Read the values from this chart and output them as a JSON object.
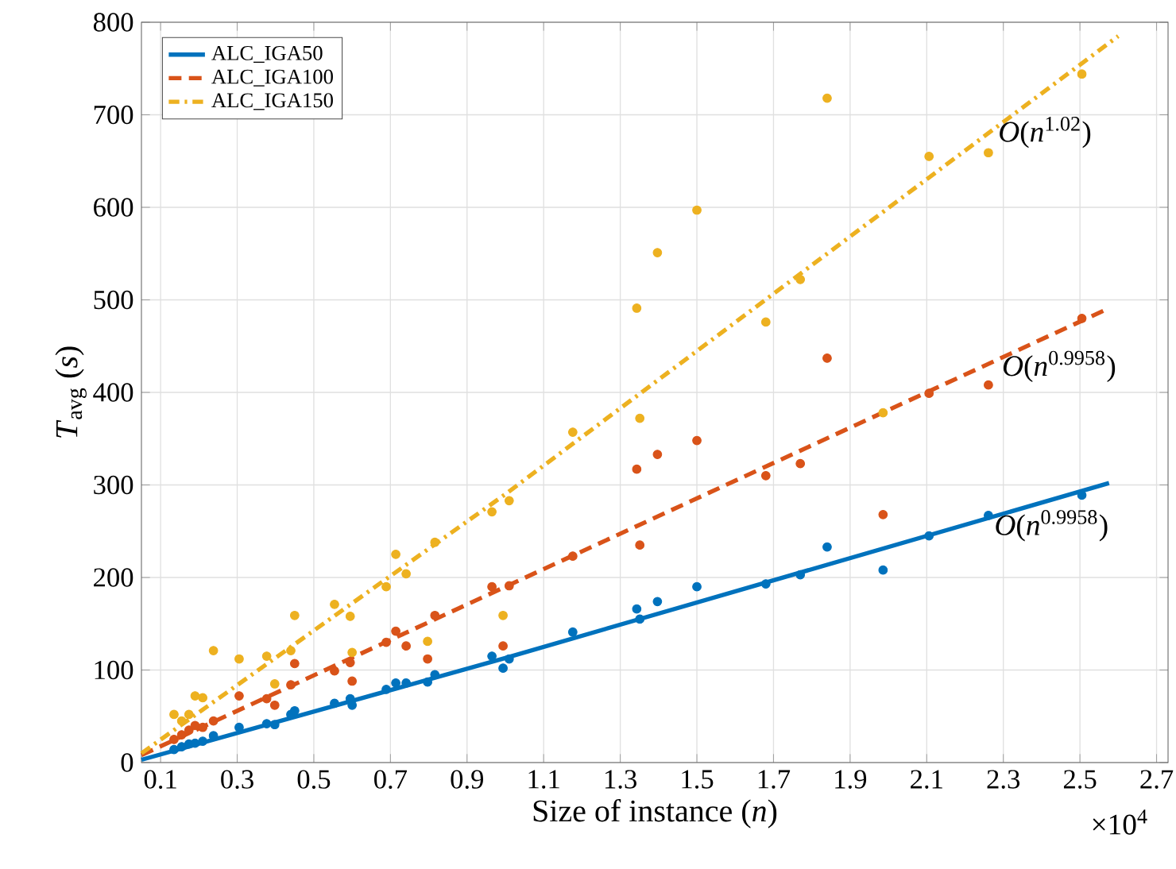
{
  "chart_data": {
    "type": "scatter",
    "xlabel": "Size of instance (*n*)",
    "ylabel": "*T*$_{avg}$ (*s*)",
    "xlim": [
      0.05,
      2.73
    ],
    "ylim": [
      0,
      800
    ],
    "xticks": [
      0.1,
      0.3,
      0.5,
      0.7,
      0.9,
      1.1,
      1.3,
      1.5,
      1.7,
      1.9,
      2.1,
      2.3,
      2.5,
      2.7
    ],
    "yticks": [
      0,
      100,
      200,
      300,
      400,
      500,
      600,
      700,
      800
    ],
    "grid": true,
    "legend": "top left",
    "series": [
      {
        "name": "ALC_IGA50",
        "type": "line",
        "color": "#0072bd",
        "line_style": "solid",
        "x": [
          0.05,
          1.0,
          2.576
        ],
        "values": [
          3,
          113,
          302
        ]
      },
      {
        "name": "ALC_IGA100",
        "type": "line",
        "color": "#d95319",
        "line_style": "dashed",
        "x": [
          0.05,
          1.0,
          2.576
        ],
        "values": [
          8,
          190,
          491
        ]
      },
      {
        "name": "ALC_IGA150",
        "type": "line",
        "color": "#edb120",
        "line_style": "dashdot",
        "x": [
          0.05,
          1.0,
          2.6
        ],
        "values": [
          10,
          290,
          785
        ]
      },
      {
        "color": "#0072bd",
        "marker": "circle",
        "x": [
          0.135,
          0.155,
          0.174,
          0.19,
          0.21,
          0.238,
          0.305,
          0.377,
          0.398,
          0.44,
          0.45,
          0.554,
          0.595,
          0.6,
          0.689,
          0.714,
          0.741,
          0.797,
          0.816,
          0.965,
          0.994,
          1.01,
          1.176,
          1.343,
          1.351,
          1.397,
          1.5,
          1.68,
          1.77,
          1.84,
          1.986,
          2.106,
          2.261,
          2.505
        ],
        "values": [
          14,
          17,
          20,
          21,
          23,
          29,
          38,
          42,
          41,
          52,
          56,
          64,
          69,
          62,
          79,
          86,
          86,
          87,
          95,
          115,
          102,
          112,
          141,
          166,
          155,
          174,
          190,
          193,
          203,
          233,
          208,
          245,
          267,
          289
        ]
      },
      {
        "color": "#d95319",
        "marker": "circle",
        "x": [
          0.135,
          0.155,
          0.174,
          0.19,
          0.21,
          0.238,
          0.305,
          0.377,
          0.398,
          0.44,
          0.45,
          0.554,
          0.595,
          0.6,
          0.689,
          0.714,
          0.741,
          0.797,
          0.816,
          0.965,
          0.994,
          1.01,
          1.176,
          1.343,
          1.351,
          1.397,
          1.5,
          1.68,
          1.77,
          1.84,
          1.986,
          2.106,
          2.261,
          2.505
        ],
        "values": [
          25,
          30,
          35,
          40,
          38,
          45,
          72,
          69,
          62,
          84,
          107,
          99,
          108,
          88,
          130,
          142,
          126,
          112,
          159,
          190,
          126,
          191,
          223,
          317,
          235,
          333,
          348,
          310,
          323,
          437,
          268,
          399,
          408,
          480
        ]
      },
      {
        "color": "#edb120",
        "marker": "circle",
        "x": [
          0.135,
          0.155,
          0.174,
          0.19,
          0.21,
          0.238,
          0.305,
          0.377,
          0.398,
          0.44,
          0.45,
          0.554,
          0.595,
          0.6,
          0.689,
          0.714,
          0.741,
          0.797,
          0.816,
          0.965,
          0.994,
          1.01,
          1.176,
          1.343,
          1.351,
          1.397,
          1.5,
          1.68,
          1.77,
          1.84,
          1.986,
          2.106,
          2.261,
          2.505
        ],
        "values": [
          52,
          45,
          52,
          72,
          70,
          121,
          112,
          115,
          85,
          121,
          159,
          171,
          158,
          119,
          190,
          225,
          204,
          131,
          238,
          271,
          159,
          283,
          357,
          491,
          372,
          551,
          597,
          476,
          522,
          718,
          378,
          655,
          659,
          744
        ]
      }
    ],
    "annotations": [
      {
        "text": "*O*(*n*$^{1.02}$)",
        "x": 2.28,
        "y": 681
      },
      {
        "text": "*O*(*n*$^{0.9958}$)",
        "x": 2.29,
        "y": 428
      },
      {
        "text": "*O*(*n*$^{0.9958}$)",
        "x": 2.27,
        "y": 256
      },
      "×10$^{4}$"
    ]
  }
}
